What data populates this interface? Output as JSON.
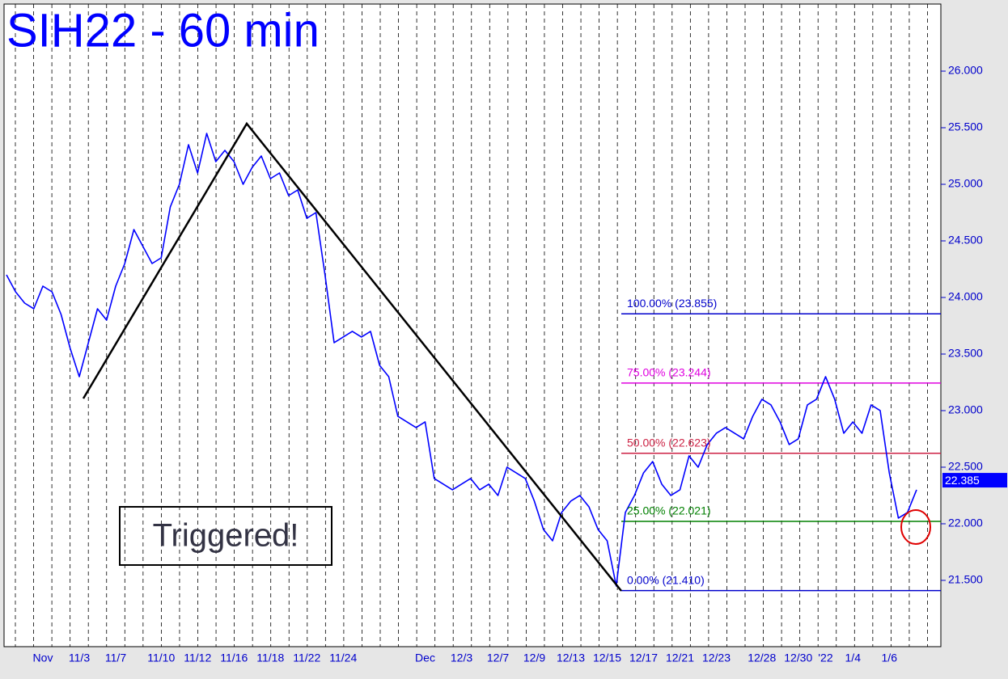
{
  "chart_data": {
    "type": "line",
    "title": "SIH22 - 60 min",
    "categories": [
      null,
      null,
      null,
      null,
      "Nov",
      null,
      null,
      null,
      "11/3",
      null,
      null,
      null,
      "11/7",
      null,
      null,
      null,
      null,
      "11/10",
      null,
      null,
      null,
      "11/12",
      null,
      null,
      null,
      "11/16",
      null,
      null,
      null,
      "11/18",
      null,
      null,
      null,
      "11/22",
      null,
      null,
      null,
      "11/24",
      null,
      null,
      null,
      null,
      null,
      null,
      null,
      null,
      "Dec",
      null,
      null,
      null,
      "12/3",
      null,
      null,
      null,
      "12/7",
      null,
      null,
      null,
      "12/9",
      null,
      null,
      null,
      "12/13",
      null,
      null,
      null,
      "12/15",
      null,
      null,
      null,
      "12/17",
      null,
      null,
      null,
      "12/21",
      null,
      null,
      null,
      "12/23",
      null,
      null,
      null,
      null,
      "12/28",
      null,
      null,
      null,
      "12/30",
      null,
      null,
      "'22",
      null,
      null,
      "1/4",
      null,
      null,
      null,
      "1/6",
      null,
      null,
      null
    ],
    "series": [
      {
        "color": "#0000ff",
        "values": [
          24.2,
          24.05,
          23.95,
          23.9,
          24.1,
          24.05,
          23.85,
          23.55,
          23.3,
          23.6,
          23.9,
          23.8,
          24.1,
          24.3,
          24.6,
          24.45,
          24.3,
          24.35,
          24.8,
          25.0,
          25.35,
          25.1,
          25.45,
          25.2,
          25.3,
          25.2,
          25.0,
          25.15,
          25.25,
          25.05,
          25.1,
          24.9,
          24.95,
          24.7,
          24.75,
          24.2,
          23.6,
          23.65,
          23.7,
          23.65,
          23.7,
          23.4,
          23.3,
          22.95,
          22.9,
          22.85,
          22.9,
          22.4,
          22.35,
          22.3,
          22.35,
          22.4,
          22.3,
          22.35,
          22.25,
          22.5,
          22.45,
          22.4,
          22.2,
          21.95,
          21.85,
          22.1,
          22.2,
          22.25,
          22.15,
          21.95,
          21.85,
          21.45,
          22.1,
          22.25,
          22.45,
          22.55,
          22.35,
          22.25,
          22.3,
          22.6,
          22.5,
          22.7,
          22.8,
          22.85,
          22.8,
          22.75,
          22.95,
          23.1,
          23.05,
          22.9,
          22.7,
          22.75,
          23.05,
          23.1,
          23.3,
          23.1,
          22.8,
          22.9,
          22.8,
          23.05,
          23.0,
          22.45,
          22.05,
          22.1,
          22.3
        ]
      }
    ],
    "ylim": [
      20.914,
      26.593
    ],
    "yticks": [
      {
        "value": 21.5,
        "label": "21.500"
      },
      {
        "value": 22,
        "label": "22.000"
      },
      {
        "value": 22.5,
        "label": "22.500"
      },
      {
        "value": 23,
        "label": "23.000"
      },
      {
        "value": 23.5,
        "label": "23.500"
      },
      {
        "value": 24,
        "label": "24.000"
      },
      {
        "value": 24.5,
        "label": "24.500"
      },
      {
        "value": 25,
        "label": "25.000"
      },
      {
        "value": 25.5,
        "label": "25.500"
      },
      {
        "value": 26,
        "label": "26.000"
      }
    ],
    "annotations": [
      {
        "label": "100.00% (23.855)",
        "value": 23.855,
        "color": "#0000cc"
      },
      {
        "label": "75.00% (23.244)",
        "value": 23.244,
        "color": "#e000e0"
      },
      {
        "label": "50.00% (22.623)",
        "value": 22.623,
        "color": "#cc2244"
      },
      {
        "label": "25.00% (22.021)",
        "value": 22.021,
        "color": "#008000"
      },
      {
        "label": "0.00% (21.410)",
        "value": 21.41,
        "color": "#0000cc"
      }
    ],
    "last_price": {
      "value": 22.385,
      "label": "22.385"
    },
    "note": "Triggered!"
  }
}
